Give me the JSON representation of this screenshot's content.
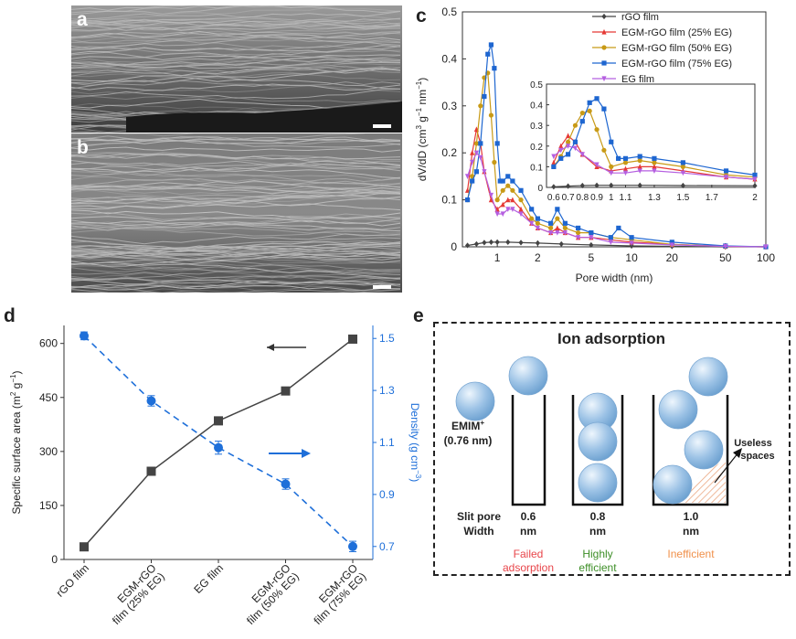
{
  "panels": {
    "a": "a",
    "b": "b",
    "c": "c",
    "d": "d",
    "e": "e"
  },
  "chart_c": {
    "type": "line",
    "ylabel_parts": [
      "dV/dD (cm",
      "3",
      " g",
      "−1",
      " nm",
      "−1",
      ")"
    ],
    "xlabel": "Pore width (nm)",
    "x_scale": "log",
    "xlim": [
      0.55,
      100
    ],
    "ylim": [
      0,
      0.5
    ],
    "x_ticks": [
      1,
      2,
      5,
      10,
      20,
      50,
      100
    ],
    "y_ticks": [
      0,
      0.1,
      0.2,
      0.3,
      0.4,
      0.5
    ],
    "legend": [
      "rGO film",
      "EGM-rGO film (25% EG)",
      "EGM-rGO film (50% EG)",
      "EGM-rGO film (75% EG)",
      "EG film"
    ],
    "colors": [
      "#444444",
      "#e53935",
      "#c89a16",
      "#1e66d0",
      "#b55fe0"
    ],
    "inset": {
      "xlim": [
        0.55,
        2.0
      ],
      "ylim": [
        0,
        0.5
      ],
      "x_ticks": [
        0.6,
        0.7,
        0.8,
        0.9,
        1,
        1.1,
        1.3,
        1.5,
        1.7,
        2
      ],
      "y_ticks": [
        0,
        0.1,
        0.2,
        0.3,
        0.4,
        0.5
      ]
    }
  },
  "chart_data": {
    "type": "line",
    "series": [
      {
        "name": "rGO film",
        "x": [
          0.6,
          0.7,
          0.8,
          0.9,
          1.0,
          1.2,
          1.5,
          2.0,
          3.0,
          5.0,
          10,
          20,
          50,
          100
        ],
        "y": [
          0.003,
          0.006,
          0.009,
          0.01,
          0.01,
          0.01,
          0.009,
          0.008,
          0.006,
          0.004,
          0.002,
          0.001,
          0.0,
          0.0
        ]
      },
      {
        "name": "EGM-rGO film (25% EG)",
        "x": [
          0.6,
          0.65,
          0.7,
          0.75,
          0.8,
          0.9,
          1.0,
          1.1,
          1.2,
          1.3,
          1.5,
          1.8,
          2.0,
          2.5,
          2.8,
          3.2,
          4.0,
          5.0,
          7.0,
          10,
          20,
          50,
          100
        ],
        "y": [
          0.12,
          0.2,
          0.25,
          0.22,
          0.16,
          0.1,
          0.08,
          0.09,
          0.1,
          0.1,
          0.08,
          0.05,
          0.04,
          0.03,
          0.04,
          0.03,
          0.02,
          0.02,
          0.015,
          0.01,
          0.005,
          0.001,
          0.0
        ]
      },
      {
        "name": "EGM-rGO film (50% EG)",
        "x": [
          0.6,
          0.65,
          0.7,
          0.75,
          0.8,
          0.85,
          0.9,
          0.95,
          1.0,
          1.1,
          1.2,
          1.3,
          1.5,
          1.8,
          2.0,
          2.5,
          2.8,
          3.2,
          4.0,
          5.0,
          7.0,
          10,
          20,
          50,
          100
        ],
        "y": [
          0.1,
          0.15,
          0.22,
          0.3,
          0.36,
          0.37,
          0.28,
          0.18,
          0.1,
          0.12,
          0.13,
          0.12,
          0.1,
          0.06,
          0.05,
          0.04,
          0.06,
          0.04,
          0.03,
          0.03,
          0.02,
          0.015,
          0.005,
          0.001,
          0.0
        ]
      },
      {
        "name": "EGM-rGO film (75% EG)",
        "x": [
          0.6,
          0.65,
          0.7,
          0.75,
          0.8,
          0.85,
          0.9,
          0.95,
          1.0,
          1.05,
          1.1,
          1.2,
          1.3,
          1.5,
          1.8,
          2.0,
          2.5,
          2.8,
          3.2,
          4.0,
          5.0,
          7.0,
          8.0,
          10,
          20,
          50,
          100
        ],
        "y": [
          0.1,
          0.14,
          0.16,
          0.22,
          0.32,
          0.41,
          0.43,
          0.38,
          0.22,
          0.14,
          0.14,
          0.15,
          0.14,
          0.12,
          0.08,
          0.06,
          0.05,
          0.08,
          0.05,
          0.04,
          0.03,
          0.02,
          0.04,
          0.02,
          0.01,
          0.002,
          0.0
        ]
      },
      {
        "name": "EG film",
        "x": [
          0.6,
          0.65,
          0.7,
          0.75,
          0.8,
          0.9,
          1.0,
          1.1,
          1.2,
          1.3,
          1.5,
          1.8,
          2.0,
          2.5,
          2.8,
          3.2,
          4.0,
          5.0,
          7.0,
          10,
          20,
          50,
          100
        ],
        "y": [
          0.15,
          0.18,
          0.2,
          0.19,
          0.16,
          0.11,
          0.07,
          0.07,
          0.08,
          0.08,
          0.07,
          0.05,
          0.04,
          0.03,
          0.03,
          0.03,
          0.02,
          0.02,
          0.01,
          0.008,
          0.004,
          0.001,
          0.0
        ]
      }
    ]
  },
  "chart_d": {
    "type": "line",
    "ylabel_left_parts": [
      "Specific surface area (m",
      "2",
      " g",
      "−1",
      ")"
    ],
    "ylabel_right_parts": [
      "Density (g cm",
      "−3",
      ")"
    ],
    "categories": [
      "rGO film",
      "EGM-rGO film (25% EG)",
      "EG film",
      "EGM-rGO film (50% EG)",
      "EGM-rGO film (75% EG)"
    ],
    "category_lines": [
      [
        "rGO film"
      ],
      [
        "EGM-rGO",
        "film (25% EG)"
      ],
      [
        "EG film"
      ],
      [
        "EGM-rGO",
        "film (50% EG)"
      ],
      [
        "EGM-rGO",
        "film (75% EG)"
      ]
    ],
    "left_ticks": [
      0,
      150,
      300,
      450,
      600
    ],
    "right_ticks": [
      0.7,
      0.9,
      1.1,
      1.3,
      1.5
    ],
    "left_ylim": [
      0,
      650
    ],
    "right_ylim": [
      0.65,
      1.55
    ],
    "surface_area": [
      35,
      245,
      385,
      468,
      612
    ],
    "density": [
      1.51,
      1.26,
      1.08,
      0.94,
      0.7
    ],
    "density_err": [
      0.015,
      0.02,
      0.025,
      0.02,
      0.02
    ],
    "colors": {
      "area": "#444444",
      "density": "#1e6fd9"
    }
  },
  "panel_e": {
    "title": "Ion adsorption",
    "ion_label": "EMIM",
    "ion_sup": "+",
    "ion_size": "(0.76 nm)",
    "row_label": [
      "Slit pore",
      "Width"
    ],
    "widths": [
      [
        "0.6",
        "nm"
      ],
      [
        "0.8",
        "nm"
      ],
      [
        "1.0",
        "nm"
      ]
    ],
    "outcomes": [
      [
        "Failed",
        "adsorption"
      ],
      [
        "Highly",
        "efficient"
      ],
      [
        "Inefficient"
      ]
    ],
    "outcome_colors": [
      "#e8454a",
      "#3e8f28",
      "#f0904a"
    ],
    "useless_label": [
      "Useless",
      "spaces"
    ]
  }
}
